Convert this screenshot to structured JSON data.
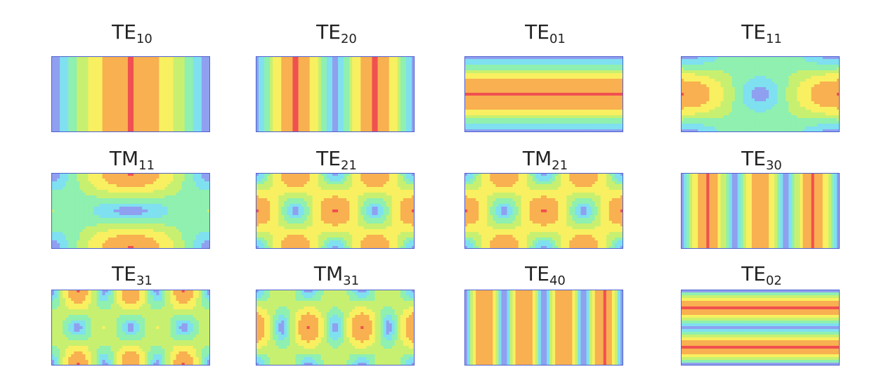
{
  "modes": [
    {
      "name": "TE",
      "sub": "10",
      "m": 1,
      "n": 0
    },
    {
      "name": "TE",
      "sub": "20",
      "m": 2,
      "n": 0
    },
    {
      "name": "TE",
      "sub": "01",
      "m": 0,
      "n": 1
    },
    {
      "name": "TE",
      "sub": "11",
      "m": 1,
      "n": 1
    },
    {
      "name": "TM",
      "sub": "11",
      "m": 1,
      "n": 1
    },
    {
      "name": "TE",
      "sub": "21",
      "m": 2,
      "n": 1
    },
    {
      "name": "TM",
      "sub": "21",
      "m": 2,
      "n": 1
    },
    {
      "name": "TE",
      "sub": "30",
      "m": 3,
      "n": 0
    },
    {
      "name": "TE",
      "sub": "31",
      "m": 3,
      "n": 1
    },
    {
      "name": "TM",
      "sub": "31",
      "m": 3,
      "n": 1
    },
    {
      "name": "TE",
      "sub": "40",
      "m": 4,
      "n": 0
    },
    {
      "name": "TE",
      "sub": "02",
      "m": 0,
      "n": 2
    }
  ],
  "colormap": [
    "#8fa0f0",
    "#7fe0f0",
    "#8ff0b0",
    "#c8f070",
    "#f8f060",
    "#f8b050",
    "#f05050"
  ],
  "border_color": "#5060d0"
}
